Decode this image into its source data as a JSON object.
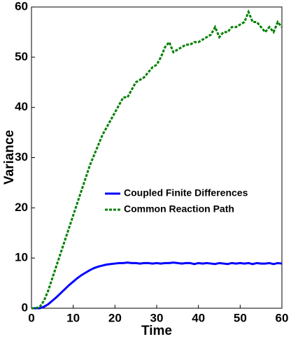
{
  "chart_data": {
    "type": "line",
    "x_label": "Time",
    "y_label": "Variance",
    "x": [
      0,
      1,
      2,
      3,
      4,
      5,
      6,
      7,
      8,
      9,
      10,
      11,
      12,
      13,
      14,
      15,
      16,
      17,
      18,
      19,
      20,
      21,
      22,
      23,
      24,
      25,
      26,
      27,
      28,
      29,
      30,
      31,
      32,
      33,
      34,
      35,
      36,
      37,
      38,
      39,
      40,
      41,
      42,
      43,
      44,
      45,
      46,
      47,
      48,
      49,
      50,
      51,
      52,
      53,
      54,
      55,
      56,
      57,
      58,
      59,
      60
    ],
    "series": [
      {
        "name": "Coupled Finite Differences",
        "color": "#0000ff",
        "linestyle": "solid",
        "values": [
          0,
          0,
          0,
          0.3,
          0.8,
          1.5,
          2.2,
          3,
          3.8,
          4.6,
          5.3,
          6,
          6.6,
          7.1,
          7.6,
          8,
          8.3,
          8.5,
          8.7,
          8.8,
          8.9,
          9,
          9,
          9.1,
          9,
          9,
          8.9,
          9,
          9,
          8.9,
          9,
          8.9,
          9,
          9,
          9.1,
          9,
          8.9,
          9,
          9,
          8.8,
          9,
          8.9,
          9,
          8.9,
          8.8,
          9,
          8.9,
          8.8,
          9,
          8.9,
          9,
          8.9,
          9,
          8.8,
          9,
          8.9,
          8.9,
          9,
          8.8,
          9,
          8.9
        ]
      },
      {
        "name": "Common Reaction Path",
        "color": "#008000",
        "linestyle": "dashed",
        "values": [
          0,
          0,
          0.3,
          1.5,
          3.5,
          6,
          8.5,
          11,
          13.5,
          16,
          18.5,
          21,
          23.5,
          26,
          28.5,
          30.5,
          32.5,
          34.5,
          36,
          37.5,
          39,
          40.5,
          42,
          42,
          43.5,
          45,
          45.5,
          46,
          47,
          48,
          48.5,
          50,
          52,
          53,
          51,
          51.5,
          52,
          52.5,
          52.5,
          53,
          53,
          53.5,
          54,
          54.5,
          56,
          54,
          55,
          55,
          56,
          56,
          56.5,
          57,
          59,
          57,
          57,
          56,
          55,
          56,
          55,
          57,
          56
        ]
      }
    ],
    "xlim": [
      0,
      60
    ],
    "xticks": [
      0,
      10,
      20,
      30,
      40,
      50,
      60
    ],
    "ylim": [
      0,
      60
    ],
    "yticks": [
      0,
      10,
      20,
      30,
      40,
      50,
      60
    ],
    "legend": "center-right"
  }
}
